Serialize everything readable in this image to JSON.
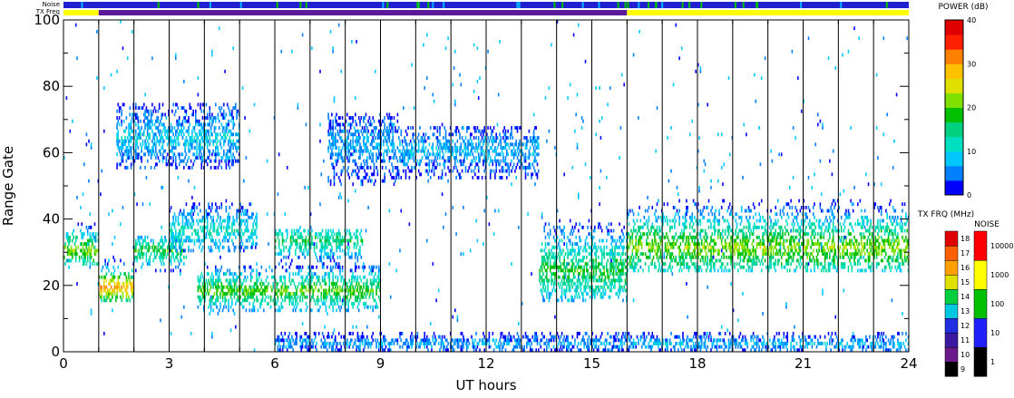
{
  "chart_data": {
    "type": "heatmap",
    "xlabel": "UT hours",
    "ylabel": "Range Gate",
    "xlim": [
      0,
      24
    ],
    "ylim": [
      0,
      100
    ],
    "x_ticks": [
      "0",
      "3",
      "6",
      "9",
      "12",
      "15",
      "18",
      "21",
      "24"
    ],
    "y_ticks": [
      "0",
      "20",
      "40",
      "60",
      "80",
      "100"
    ],
    "vertical_marker_hours": [
      1,
      2,
      3,
      4,
      5,
      6,
      7,
      8,
      9,
      10,
      11,
      12,
      13,
      14,
      15,
      16,
      17,
      18,
      19,
      20,
      21,
      22,
      23
    ],
    "top_bars": {
      "noise_label": "Noise",
      "txfreq_label": "TX Freq",
      "noise_color": "#2020d0",
      "tx_segments": [
        {
          "from": 0,
          "to": 1,
          "color": "#ffff00"
        },
        {
          "from": 1,
          "to": 16,
          "color": "#5a1a9a"
        },
        {
          "from": 16,
          "to": 24,
          "color": "#ffff00"
        }
      ]
    },
    "scatter_regions": [
      {
        "x0": 0.0,
        "x1": 1.0,
        "y0": 26,
        "y1": 40,
        "peak": 30,
        "db": 22
      },
      {
        "x0": 1.0,
        "x1": 2.0,
        "y0": 15,
        "y1": 28,
        "peak": 19,
        "db": 30
      },
      {
        "x0": 2.0,
        "x1": 3.5,
        "y0": 24,
        "y1": 35,
        "peak": 30,
        "db": 18
      },
      {
        "x0": 3.0,
        "x1": 5.5,
        "y0": 30,
        "y1": 45,
        "peak": 36,
        "db": 12
      },
      {
        "x0": 1.5,
        "x1": 5.0,
        "y0": 55,
        "y1": 75,
        "peak": 64,
        "db": 9
      },
      {
        "x0": 3.8,
        "x1": 9.0,
        "y0": 12,
        "y1": 26,
        "peak": 18,
        "db": 20
      },
      {
        "x0": 6.0,
        "x1": 8.5,
        "y0": 24,
        "y1": 37,
        "peak": 33,
        "db": 16
      },
      {
        "x0": 7.5,
        "x1": 9.5,
        "y0": 50,
        "y1": 72,
        "peak": 62,
        "db": 7
      },
      {
        "x0": 9.5,
        "x1": 13.5,
        "y0": 52,
        "y1": 68,
        "peak": 60,
        "db": 8
      },
      {
        "x0": 13.5,
        "x1": 16.0,
        "y0": 15,
        "y1": 40,
        "peak": 24,
        "db": 18
      },
      {
        "x0": 16.0,
        "x1": 24.0,
        "y0": 24,
        "y1": 46,
        "peak": 31,
        "db": 22
      },
      {
        "x0": 6.0,
        "x1": 16.0,
        "y0": 0,
        "y1": 6,
        "peak": 2,
        "db": 7
      },
      {
        "x0": 16.0,
        "x1": 24.0,
        "y0": 0,
        "y1": 6,
        "peak": 2,
        "db": 8
      },
      {
        "x0": 0.0,
        "x1": 24.0,
        "y0": 0,
        "y1": 100,
        "peak": 50,
        "db": 4
      }
    ],
    "colorbars": [
      {
        "title": "POWER (dB)",
        "range": [
          0,
          40
        ],
        "tick_labels": [
          "0",
          "10",
          "20",
          "30",
          "40"
        ],
        "colors": [
          "#0000ff",
          "#0080ff",
          "#00c8ff",
          "#00e0c0",
          "#00d080",
          "#00c000",
          "#80e000",
          "#e0e000",
          "#ffc000",
          "#ff8000",
          "#ff2000",
          "#e00000"
        ]
      },
      {
        "title": "TX FRQ (MHz)",
        "levels": [
          "9",
          "10",
          "11",
          "12",
          "13",
          "14",
          "15",
          "16",
          "17",
          "18"
        ],
        "colors": [
          "#000000",
          "#6a1a8a",
          "#3c1aa0",
          "#2030e0",
          "#00c8e0",
          "#00d040",
          "#e0e000",
          "#ffa000",
          "#ff6000",
          "#e00000"
        ]
      },
      {
        "title": "NOISE",
        "tick_labels": [
          "1",
          "10",
          "100",
          "1000",
          "10000"
        ],
        "colors": [
          "#000000",
          "#2020ff",
          "#00c000",
          "#ffff00",
          "#ff0000"
        ]
      }
    ]
  }
}
